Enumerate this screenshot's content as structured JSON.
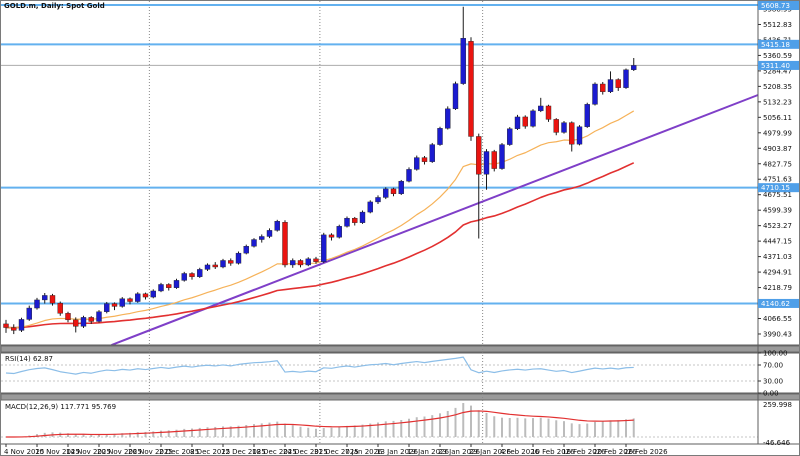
{
  "chart": {
    "title": "GOLD.m, Daily: Spot Gold",
    "symbol": "GOLD.m",
    "timeframe": "Daily",
    "description": "Spot Gold"
  },
  "indicators": {
    "rsi_label": "RSI(14) 62.87",
    "macd_label": "MACD(12,26,9) 117.771 95.769"
  },
  "chart_data": {
    "type": "candlestick",
    "title": "GOLD.m, Daily: Spot Gold",
    "ylim": [
      3950,
      5640
    ],
    "grid": "month-separators",
    "legend_position": "none",
    "y_axis_ticks": [
      5588.95,
      5512.83,
      5436.71,
      5360.59,
      5284.47,
      5208.35,
      5132.23,
      5056.11,
      4979.99,
      4903.87,
      4827.75,
      4751.63,
      4675.51,
      4599.39,
      4523.27,
      4447.15,
      4371.03,
      4294.91,
      4218.79,
      4142.67,
      4066.55,
      3990.43
    ],
    "x_labels": [
      "4 Nov 2025",
      "10 Nov 2025",
      "14 Nov 2025",
      "20 Nov 2025",
      "26 Nov 2025",
      "2 Dec 2025",
      "8 Dec 2025",
      "12 Dec 2025",
      "18 Dec 2025",
      "24 Dec 2025",
      "31 Dec 2025",
      "7 Jan 2026",
      "13 Jan 2026",
      "19 Jan 2026",
      "23 Jan 2026",
      "29 Jan 2026",
      "4 Feb 2026",
      "10 Feb 2026",
      "16 Feb 2026",
      "20 Feb 2026",
      "26 Feb 2026"
    ],
    "x_label_indices": [
      0,
      4,
      8,
      12,
      16,
      20,
      24,
      28,
      32,
      36,
      40,
      44,
      48,
      52,
      56,
      60,
      64,
      68,
      72,
      76,
      80
    ],
    "month_separator_indices": [
      19,
      41,
      62
    ],
    "candles": [
      [
        4040,
        4060,
        3996,
        4022
      ],
      [
        4022,
        4038,
        3990,
        4008
      ],
      [
        4008,
        4070,
        4000,
        4062
      ],
      [
        4062,
        4130,
        4055,
        4118
      ],
      [
        4118,
        4168,
        4110,
        4158
      ],
      [
        4158,
        4192,
        4140,
        4180
      ],
      [
        4180,
        4188,
        4130,
        4142
      ],
      [
        4142,
        4150,
        4080,
        4092
      ],
      [
        4092,
        4100,
        4048,
        4060
      ],
      [
        4060,
        4072,
        3998,
        4028
      ],
      [
        4028,
        4080,
        4020,
        4072
      ],
      [
        4072,
        4078,
        4040,
        4052
      ],
      [
        4052,
        4108,
        4046,
        4100
      ],
      [
        4100,
        4148,
        4092,
        4140
      ],
      [
        4140,
        4146,
        4108,
        4126
      ],
      [
        4126,
        4172,
        4120,
        4164
      ],
      [
        4164,
        4170,
        4136,
        4150
      ],
      [
        4150,
        4196,
        4144,
        4188
      ],
      [
        4188,
        4194,
        4160,
        4172
      ],
      [
        4172,
        4210,
        4166,
        4202
      ],
      [
        4202,
        4242,
        4196,
        4234
      ],
      [
        4234,
        4240,
        4204,
        4218
      ],
      [
        4218,
        4262,
        4212,
        4254
      ],
      [
        4254,
        4296,
        4248,
        4288
      ],
      [
        4288,
        4294,
        4258,
        4272
      ],
      [
        4272,
        4316,
        4266,
        4308
      ],
      [
        4308,
        4338,
        4300,
        4330
      ],
      [
        4330,
        4344,
        4310,
        4320
      ],
      [
        4320,
        4360,
        4314,
        4352
      ],
      [
        4352,
        4362,
        4326,
        4338
      ],
      [
        4338,
        4396,
        4332,
        4388
      ],
      [
        4388,
        4430,
        4382,
        4422
      ],
      [
        4422,
        4462,
        4416,
        4455
      ],
      [
        4455,
        4480,
        4440,
        4470
      ],
      [
        4470,
        4510,
        4462,
        4500
      ],
      [
        4500,
        4552,
        4494,
        4545
      ],
      [
        4540,
        4550,
        4318,
        4330
      ],
      [
        4330,
        4362,
        4316,
        4352
      ],
      [
        4352,
        4358,
        4318,
        4330
      ],
      [
        4330,
        4368,
        4324,
        4360
      ],
      [
        4360,
        4370,
        4336,
        4346
      ],
      [
        4346,
        4488,
        4340,
        4478
      ],
      [
        4478,
        4486,
        4450,
        4466
      ],
      [
        4466,
        4528,
        4460,
        4520
      ],
      [
        4520,
        4568,
        4514,
        4560
      ],
      [
        4560,
        4566,
        4524,
        4538
      ],
      [
        4538,
        4598,
        4532,
        4590
      ],
      [
        4590,
        4648,
        4584,
        4640
      ],
      [
        4640,
        4672,
        4630,
        4662
      ],
      [
        4662,
        4712,
        4654,
        4704
      ],
      [
        4704,
        4710,
        4668,
        4680
      ],
      [
        4680,
        4748,
        4674,
        4742
      ],
      [
        4742,
        4810,
        4736,
        4800
      ],
      [
        4800,
        4868,
        4794,
        4858
      ],
      [
        4858,
        4866,
        4824,
        4838
      ],
      [
        4838,
        4930,
        4832,
        4922
      ],
      [
        4922,
        5010,
        4916,
        5002
      ],
      [
        5002,
        5110,
        4996,
        5098
      ],
      [
        5098,
        5232,
        5092,
        5222
      ],
      [
        5222,
        5600,
        5216,
        5445
      ],
      [
        5430,
        5450,
        4940,
        4962
      ],
      [
        4962,
        4976,
        4460,
        4776
      ],
      [
        4776,
        4900,
        4700,
        4888
      ],
      [
        4888,
        4896,
        4790,
        4804
      ],
      [
        4804,
        4930,
        4798,
        4922
      ],
      [
        4922,
        5008,
        4916,
        5000
      ],
      [
        5000,
        5068,
        4994,
        5058
      ],
      [
        5058,
        5066,
        5000,
        5012
      ],
      [
        5012,
        5096,
        5006,
        5088
      ],
      [
        5088,
        5152,
        5082,
        5112
      ],
      [
        5112,
        5118,
        5034,
        5046
      ],
      [
        5046,
        5052,
        4968,
        4982
      ],
      [
        4982,
        5038,
        4976,
        5030
      ],
      [
        5030,
        5036,
        4888,
        4924
      ],
      [
        4924,
        5018,
        4918,
        5010
      ],
      [
        5010,
        5128,
        5004,
        5120
      ],
      [
        5120,
        5228,
        5114,
        5220
      ],
      [
        5220,
        5230,
        5168,
        5182
      ],
      [
        5182,
        5282,
        5176,
        5242
      ],
      [
        5242,
        5248,
        5186,
        5202
      ],
      [
        5202,
        5296,
        5196,
        5290
      ],
      [
        5290,
        5348,
        5284,
        5311.4
      ]
    ],
    "horizontal_lines": [
      {
        "label": "5608.73",
        "price": 5608.73
      },
      {
        "label": "5415.18",
        "price": 5415.18
      },
      {
        "label": "4710.15",
        "price": 4710.15
      },
      {
        "label": "4140.62",
        "price": 4140.62
      }
    ],
    "bid": {
      "label": "5311.40",
      "price": 5311.4
    },
    "moving_averages": [
      {
        "name": "fast-ma",
        "period": 21
      },
      {
        "name": "slow-ma",
        "period": 55
      }
    ],
    "trendline": {
      "name": "ascending-trendline"
    },
    "rsi": {
      "name": "RSI(14)",
      "value": 62.87,
      "scale_labels": [
        "100.00",
        "70.00",
        "30.00",
        "0.00"
      ],
      "levels": [
        100,
        70,
        30,
        0
      ]
    },
    "macd": {
      "name": "MACD(12,26,9)",
      "main": 117.771,
      "signal": 95.769,
      "max_label": "259.998",
      "min_label": "-46.646"
    }
  },
  "colors": {
    "bull": "#1b1bd0",
    "bear": "#ea1410",
    "wick": "#1a1a1a",
    "hline": "#63b1ef",
    "badge": "#4f9fe8",
    "badge_text": "#ffffff",
    "ma_fast": "#f6b259",
    "ma_slow": "#e23030",
    "trendline": "#7f3fc8",
    "rsi_line": "#8cbee8",
    "macd_hist": "#bcbcbc",
    "macd_signal": "#e23030",
    "bid_line": "#ababab",
    "separator": "#9a9a9a",
    "frame": "#5c5c5c",
    "axis_text": "#111111"
  }
}
